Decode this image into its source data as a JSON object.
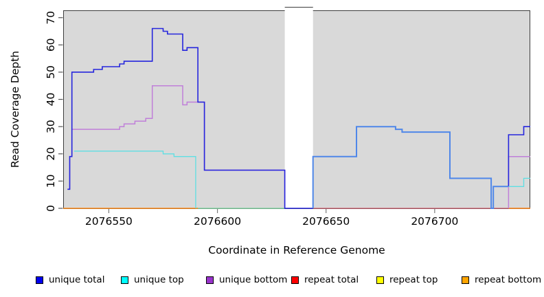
{
  "figure": {
    "xlabel": "Coordinate in Reference Genome",
    "ylabel": "Read Coverage Depth"
  },
  "chart_data": {
    "type": "line",
    "subtype": "step-coverage-plot",
    "title": "",
    "xlabel": "Coordinate in Reference Genome",
    "ylabel": "Read Coverage Depth",
    "xlim": [
      2076529,
      2076744
    ],
    "ylim": [
      0,
      72.7
    ],
    "x_ticks": [
      2076550,
      2076600,
      2076650,
      2076700
    ],
    "y_ticks": [
      0,
      10,
      20,
      30,
      40,
      50,
      60,
      70
    ],
    "grid": false,
    "legend_position": "bottom",
    "plot_bg": "#d9d9d9",
    "page_bg": "#ffffff",
    "gap_region": [
      2076631,
      2076644
    ],
    "series": [
      {
        "name": "unique total",
        "color": "#0000ee",
        "steps": [
          [
            2076531,
            7
          ],
          [
            2076532,
            19
          ],
          [
            2076533,
            50
          ],
          [
            2076543,
            51
          ],
          [
            2076547,
            52
          ],
          [
            2076555,
            53
          ],
          [
            2076557,
            54
          ],
          [
            2076570,
            66
          ],
          [
            2076575,
            65
          ],
          [
            2076577,
            64
          ],
          [
            2076584,
            58
          ],
          [
            2076586,
            59
          ],
          [
            2076591,
            39
          ],
          [
            2076594,
            14
          ],
          [
            2076631,
            0
          ],
          [
            2076644,
            19
          ],
          [
            2076664,
            30
          ],
          [
            2076682,
            29
          ],
          [
            2076685,
            28
          ],
          [
            2076707,
            11
          ],
          [
            2076726,
            0
          ],
          [
            2076727,
            8
          ],
          [
            2076734,
            27
          ],
          [
            2076741,
            30
          ]
        ]
      },
      {
        "name": "unique top",
        "color": "#00ffff",
        "steps": [
          [
            2076534,
            21
          ],
          [
            2076575,
            20
          ],
          [
            2076580,
            19
          ],
          [
            2076590,
            0
          ],
          [
            2076644,
            19
          ],
          [
            2076664,
            30
          ],
          [
            2076682,
            29
          ],
          [
            2076685,
            28
          ],
          [
            2076707,
            11
          ],
          [
            2076726,
            0
          ],
          [
            2076727,
            8
          ],
          [
            2076741,
            11
          ]
        ]
      },
      {
        "name": "unique bottom",
        "color": "#9933cc",
        "steps": [
          [
            2076531,
            7
          ],
          [
            2076532,
            19
          ],
          [
            2076533,
            29
          ],
          [
            2076555,
            30
          ],
          [
            2076557,
            31
          ],
          [
            2076562,
            32
          ],
          [
            2076567,
            33
          ],
          [
            2076570,
            45
          ],
          [
            2076584,
            38
          ],
          [
            2076586,
            39
          ],
          [
            2076594,
            14
          ],
          [
            2076631,
            0
          ],
          [
            2076734,
            19
          ]
        ]
      },
      {
        "name": "repeat total",
        "color": "#ff0000",
        "steps": [
          [
            2076529,
            0
          ]
        ]
      },
      {
        "name": "repeat top",
        "color": "#ffff00",
        "steps": [
          [
            2076529,
            0
          ]
        ]
      },
      {
        "name": "repeat bottom",
        "color": "#ffa500",
        "steps": [
          [
            2076529,
            0
          ]
        ]
      }
    ],
    "draw": [
      {
        "name": "zero-line-green-blend",
        "color": "#84d4a4",
        "width": 1.5,
        "pts": [
          [
            2076590,
            0
          ]
        ],
        "end": 2076631
      },
      {
        "name": "zero-line-repeat-total",
        "color": "#d45f70",
        "width": 1.2,
        "pts": [
          [
            2076644,
            0
          ]
        ],
        "end": 2076744
      },
      {
        "name": "zero-line-repeat-bottom-left",
        "color": "#ff8c1a",
        "width": 1.5,
        "pts": [
          [
            2076529,
            0
          ]
        ],
        "end": 2076591
      },
      {
        "name": "zero-line-repeat-bottom-right",
        "color": "#ff8c1a",
        "width": 1.5,
        "pts": [
          [
            2076734,
            0
          ]
        ],
        "end": 2076744
      },
      {
        "name": "unique-top-left",
        "color": "#5edfe3",
        "width": 1.3,
        "pts": [
          [
            2076534,
            21
          ],
          [
            2076575,
            20
          ],
          [
            2076580,
            19
          ],
          [
            2076590,
            0
          ]
        ],
        "end": 2076590
      },
      {
        "name": "unique-bottom-left",
        "color": "#c07fd9",
        "width": 1.5,
        "pts": [
          [
            2076531,
            7
          ],
          [
            2076532,
            19
          ],
          [
            2076533,
            29
          ],
          [
            2076555,
            30
          ],
          [
            2076557,
            31
          ],
          [
            2076562,
            32
          ],
          [
            2076567,
            33
          ],
          [
            2076570,
            45
          ],
          [
            2076584,
            38
          ],
          [
            2076586,
            39
          ],
          [
            2076594,
            14
          ],
          [
            2076631,
            0
          ]
        ],
        "end": 2076631
      },
      {
        "name": "unique-total-left",
        "color": "#2525dd",
        "width": 1.6,
        "pts": [
          [
            2076531,
            7
          ],
          [
            2076532,
            19
          ],
          [
            2076533,
            50
          ],
          [
            2076543,
            51
          ],
          [
            2076547,
            52
          ],
          [
            2076555,
            53
          ],
          [
            2076557,
            54
          ],
          [
            2076570,
            66
          ],
          [
            2076575,
            65
          ],
          [
            2076577,
            64
          ],
          [
            2076584,
            58
          ],
          [
            2076586,
            59
          ],
          [
            2076591,
            39
          ],
          [
            2076594,
            14
          ],
          [
            2076631,
            0
          ]
        ],
        "end": 2076644
      },
      {
        "name": "unique-total-right-top-blend",
        "color": "#4f87e9",
        "width": 2,
        "pts": [
          [
            2076644,
            0
          ],
          [
            2076644,
            19
          ],
          [
            2076664,
            30
          ],
          [
            2076682,
            29
          ],
          [
            2076685,
            28
          ],
          [
            2076707,
            11
          ],
          [
            2076726,
            0
          ],
          [
            2076727,
            8
          ]
        ],
        "end": 2076734
      },
      {
        "name": "unique-bottom-right",
        "color": "#c07fd9",
        "width": 1.5,
        "pts": [
          [
            2076734,
            0
          ],
          [
            2076734,
            19
          ]
        ],
        "end": 2076744
      },
      {
        "name": "unique-total-right",
        "color": "#2525dd",
        "width": 1.6,
        "pts": [
          [
            2076734,
            8
          ],
          [
            2076734,
            27
          ],
          [
            2076741,
            30
          ]
        ],
        "end": 2076744
      },
      {
        "name": "unique-top-right",
        "color": "#5edfe3",
        "width": 1.3,
        "pts": [
          [
            2076734,
            8
          ],
          [
            2076741,
            11
          ]
        ],
        "end": 2076744
      }
    ]
  },
  "legend": {
    "items": [
      {
        "label": "unique total",
        "color": "#0000ee"
      },
      {
        "label": "unique top",
        "color": "#00ffff"
      },
      {
        "label": "unique bottom",
        "color": "#9933cc"
      },
      {
        "label": "repeat total",
        "color": "#ff0000"
      },
      {
        "label": "repeat top",
        "color": "#ffff00"
      },
      {
        "label": "repeat bottom",
        "color": "#ffa500"
      }
    ]
  }
}
